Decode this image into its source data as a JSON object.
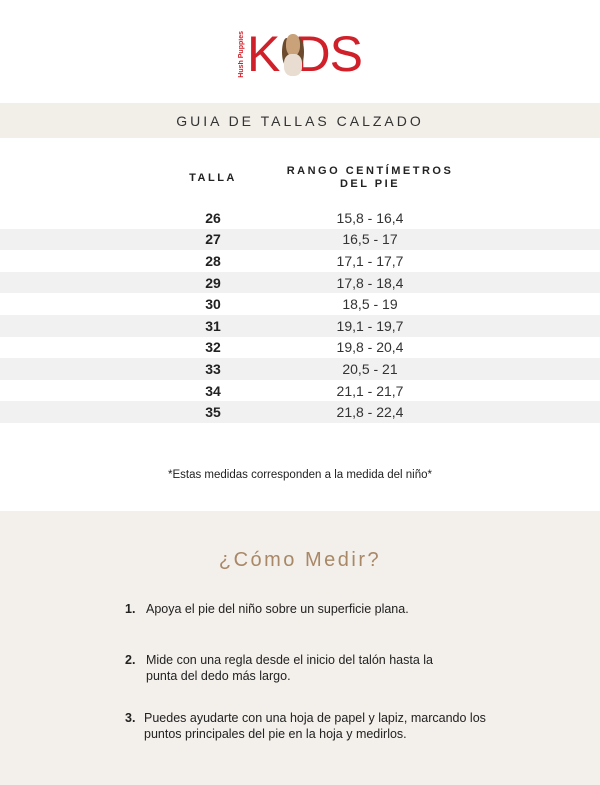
{
  "brand": {
    "logo_text": "KIDS",
    "sub_text": "Hush Puppies",
    "accent": "#d0202a"
  },
  "title": "GUIA DE TALLAS CALZADO",
  "table": {
    "headers": [
      "TALLA",
      "RANGO CENTÍMETROS DEL PIE"
    ],
    "header_line1": "RANGO CENTÍMETROS",
    "header_line2": "DEL PIE",
    "rows": [
      {
        "talla": "26",
        "rango": "15,8 - 16,4"
      },
      {
        "talla": "27",
        "rango": "16,5 - 17"
      },
      {
        "talla": "28",
        "rango": "17,1 -  17,7"
      },
      {
        "talla": "29",
        "rango": "17,8 - 18,4"
      },
      {
        "talla": "30",
        "rango": "18,5 - 19"
      },
      {
        "talla": "31",
        "rango": "19,1 - 19,7"
      },
      {
        "talla": "32",
        "rango": "19,8 - 20,4"
      },
      {
        "talla": "33",
        "rango": "20,5 - 21"
      },
      {
        "talla": "34",
        "rango": "21,1 - 21,7"
      },
      {
        "talla": "35",
        "rango": "21,8 - 22,4"
      }
    ]
  },
  "note": "*Estas medidas corresponden a la medida del niño*",
  "howto": {
    "title": "¿Cómo Medir?",
    "title_color": "#a88867",
    "steps": [
      {
        "n": "1.",
        "text": "Apoya el pie del niño sobre un superficie plana."
      },
      {
        "n": "2.",
        "text": "Mide con una regla desde el inicio del talón hasta la punta del dedo más largo."
      },
      {
        "n": "3.",
        "text": "Puedes ayudarte con una hoja de papel y lapiz, marcando los puntos principales del pie en la hoja y medirlos."
      }
    ]
  }
}
